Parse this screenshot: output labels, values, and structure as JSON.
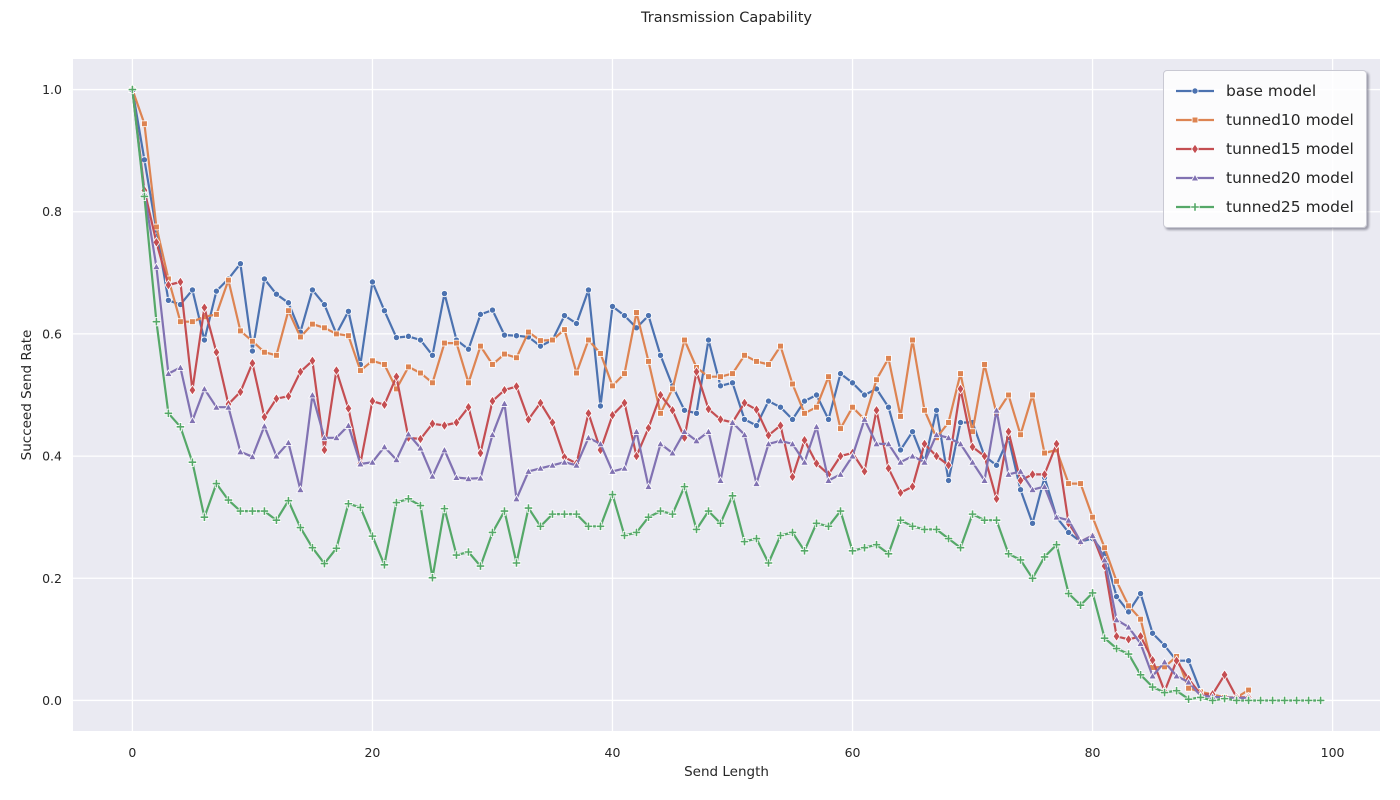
{
  "figure": {
    "background": "#ffffff"
  },
  "chart_data": {
    "type": "line",
    "title": "Transmission Capability",
    "xlabel": "Send Length",
    "ylabel": "Succeed Send Rate",
    "xlim": [
      -4.95,
      103.95
    ],
    "ylim": [
      -0.05,
      1.05
    ],
    "x_ticks": [
      0,
      20,
      40,
      60,
      80,
      100
    ],
    "y_ticks": [
      0.0,
      0.2,
      0.4,
      0.6,
      0.8,
      1.0
    ],
    "grid": true,
    "grid_color": "#ffffff",
    "plot_background": "#eaeaf2",
    "text_color": "#262626",
    "legend_position": "upper right",
    "x_start": 0,
    "x_step": 1,
    "series": [
      {
        "name": "base model",
        "color": "#4C72B0",
        "marker": "circle",
        "values": [
          1.0,
          0.885,
          0.77,
          0.655,
          0.648,
          0.672,
          0.59,
          0.67,
          0.69,
          0.715,
          0.572,
          0.69,
          0.665,
          0.651,
          0.603,
          0.672,
          0.648,
          0.6,
          0.637,
          0.55,
          0.685,
          0.638,
          0.594,
          0.596,
          0.59,
          0.565,
          0.666,
          0.59,
          0.575,
          0.632,
          0.639,
          0.598,
          0.597,
          0.595,
          0.58,
          0.59,
          0.63,
          0.617,
          0.672,
          0.482,
          0.645,
          0.63,
          0.61,
          0.63,
          0.565,
          0.515,
          0.475,
          0.47,
          0.59,
          0.515,
          0.52,
          0.46,
          0.45,
          0.49,
          0.48,
          0.46,
          0.49,
          0.5,
          0.46,
          0.535,
          0.52,
          0.5,
          0.51,
          0.48,
          0.41,
          0.44,
          0.39,
          0.475,
          0.36,
          0.455,
          0.455,
          0.4,
          0.385,
          0.43,
          0.345,
          0.29,
          0.365,
          0.3,
          0.275,
          0.26,
          0.265,
          0.24,
          0.17,
          0.145,
          0.175,
          0.11,
          0.09,
          0.065,
          0.065,
          0.015,
          0.005
        ]
      },
      {
        "name": "tunned10 model",
        "color": "#DD8452",
        "marker": "square",
        "values": [
          1.0,
          0.944,
          0.775,
          0.69,
          0.62,
          0.62,
          0.628,
          0.632,
          0.688,
          0.605,
          0.588,
          0.57,
          0.565,
          0.638,
          0.595,
          0.616,
          0.61,
          0.6,
          0.597,
          0.54,
          0.556,
          0.55,
          0.51,
          0.546,
          0.536,
          0.52,
          0.585,
          0.585,
          0.52,
          0.58,
          0.55,
          0.567,
          0.561,
          0.603,
          0.589,
          0.59,
          0.607,
          0.536,
          0.59,
          0.568,
          0.515,
          0.535,
          0.635,
          0.555,
          0.47,
          0.51,
          0.59,
          0.545,
          0.53,
          0.53,
          0.535,
          0.565,
          0.555,
          0.55,
          0.58,
          0.518,
          0.47,
          0.48,
          0.53,
          0.445,
          0.48,
          0.46,
          0.525,
          0.56,
          0.465,
          0.59,
          0.475,
          0.43,
          0.455,
          0.535,
          0.44,
          0.55,
          0.47,
          0.5,
          0.435,
          0.5,
          0.405,
          0.41,
          0.355,
          0.355,
          0.3,
          0.25,
          0.195,
          0.155,
          0.133,
          0.054,
          0.055,
          0.072,
          0.02,
          0.014,
          0.01,
          0.005,
          0.005,
          0.017
        ]
      },
      {
        "name": "tunned15 model",
        "color": "#C44E52",
        "marker": "diamond",
        "values": [
          1.0,
          0.835,
          0.75,
          0.68,
          0.685,
          0.508,
          0.643,
          0.57,
          0.485,
          0.505,
          0.552,
          0.464,
          0.494,
          0.498,
          0.538,
          0.556,
          0.41,
          0.54,
          0.478,
          0.388,
          0.49,
          0.484,
          0.53,
          0.43,
          0.428,
          0.453,
          0.45,
          0.455,
          0.48,
          0.405,
          0.49,
          0.508,
          0.514,
          0.46,
          0.487,
          0.455,
          0.398,
          0.388,
          0.47,
          0.41,
          0.467,
          0.487,
          0.4,
          0.446,
          0.5,
          0.475,
          0.43,
          0.538,
          0.477,
          0.46,
          0.455,
          0.487,
          0.476,
          0.434,
          0.45,
          0.366,
          0.426,
          0.388,
          0.37,
          0.4,
          0.405,
          0.375,
          0.475,
          0.38,
          0.34,
          0.35,
          0.42,
          0.4,
          0.385,
          0.51,
          0.415,
          0.4,
          0.33,
          0.44,
          0.36,
          0.37,
          0.37,
          0.42,
          0.29,
          0.26,
          0.27,
          0.22,
          0.105,
          0.1,
          0.105,
          0.066,
          0.015,
          0.065,
          0.035,
          0.01,
          0.01,
          0.042,
          0.005,
          0.005
        ]
      },
      {
        "name": "tunned20 model",
        "color": "#8172B2",
        "marker": "triangle",
        "values": [
          1.0,
          0.83,
          0.71,
          0.535,
          0.545,
          0.458,
          0.51,
          0.48,
          0.48,
          0.407,
          0.399,
          0.449,
          0.4,
          0.422,
          0.345,
          0.5,
          0.43,
          0.43,
          0.45,
          0.387,
          0.39,
          0.415,
          0.394,
          0.436,
          0.413,
          0.367,
          0.41,
          0.365,
          0.363,
          0.364,
          0.435,
          0.486,
          0.33,
          0.375,
          0.38,
          0.385,
          0.39,
          0.385,
          0.43,
          0.42,
          0.375,
          0.38,
          0.44,
          0.35,
          0.42,
          0.405,
          0.44,
          0.425,
          0.44,
          0.36,
          0.455,
          0.435,
          0.355,
          0.42,
          0.425,
          0.42,
          0.39,
          0.448,
          0.36,
          0.37,
          0.4,
          0.46,
          0.42,
          0.42,
          0.39,
          0.4,
          0.39,
          0.435,
          0.43,
          0.42,
          0.39,
          0.36,
          0.475,
          0.37,
          0.375,
          0.345,
          0.35,
          0.3,
          0.295,
          0.26,
          0.27,
          0.23,
          0.132,
          0.12,
          0.093,
          0.04,
          0.063,
          0.04,
          0.03,
          0.008,
          0.006,
          0.005,
          0.004,
          0.004
        ]
      },
      {
        "name": "tunned25 model",
        "color": "#55A868",
        "marker": "plus",
        "values": [
          1.0,
          0.825,
          0.62,
          0.47,
          0.448,
          0.39,
          0.3,
          0.355,
          0.328,
          0.31,
          0.31,
          0.31,
          0.295,
          0.327,
          0.283,
          0.25,
          0.224,
          0.249,
          0.322,
          0.316,
          0.269,
          0.222,
          0.324,
          0.33,
          0.319,
          0.201,
          0.314,
          0.238,
          0.243,
          0.22,
          0.275,
          0.31,
          0.225,
          0.315,
          0.285,
          0.305,
          0.305,
          0.305,
          0.285,
          0.285,
          0.337,
          0.27,
          0.275,
          0.3,
          0.31,
          0.305,
          0.35,
          0.28,
          0.31,
          0.29,
          0.335,
          0.26,
          0.265,
          0.225,
          0.27,
          0.275,
          0.245,
          0.29,
          0.285,
          0.31,
          0.245,
          0.25,
          0.255,
          0.24,
          0.295,
          0.285,
          0.28,
          0.28,
          0.265,
          0.25,
          0.305,
          0.295,
          0.295,
          0.24,
          0.23,
          0.2,
          0.235,
          0.255,
          0.175,
          0.156,
          0.176,
          0.102,
          0.085,
          0.076,
          0.042,
          0.022,
          0.013,
          0.016,
          0.002,
          0.005,
          0.0,
          0.003,
          0.0,
          0.0,
          0.0,
          0.0,
          0.0,
          0.0,
          0.0,
          0.0
        ]
      }
    ]
  }
}
